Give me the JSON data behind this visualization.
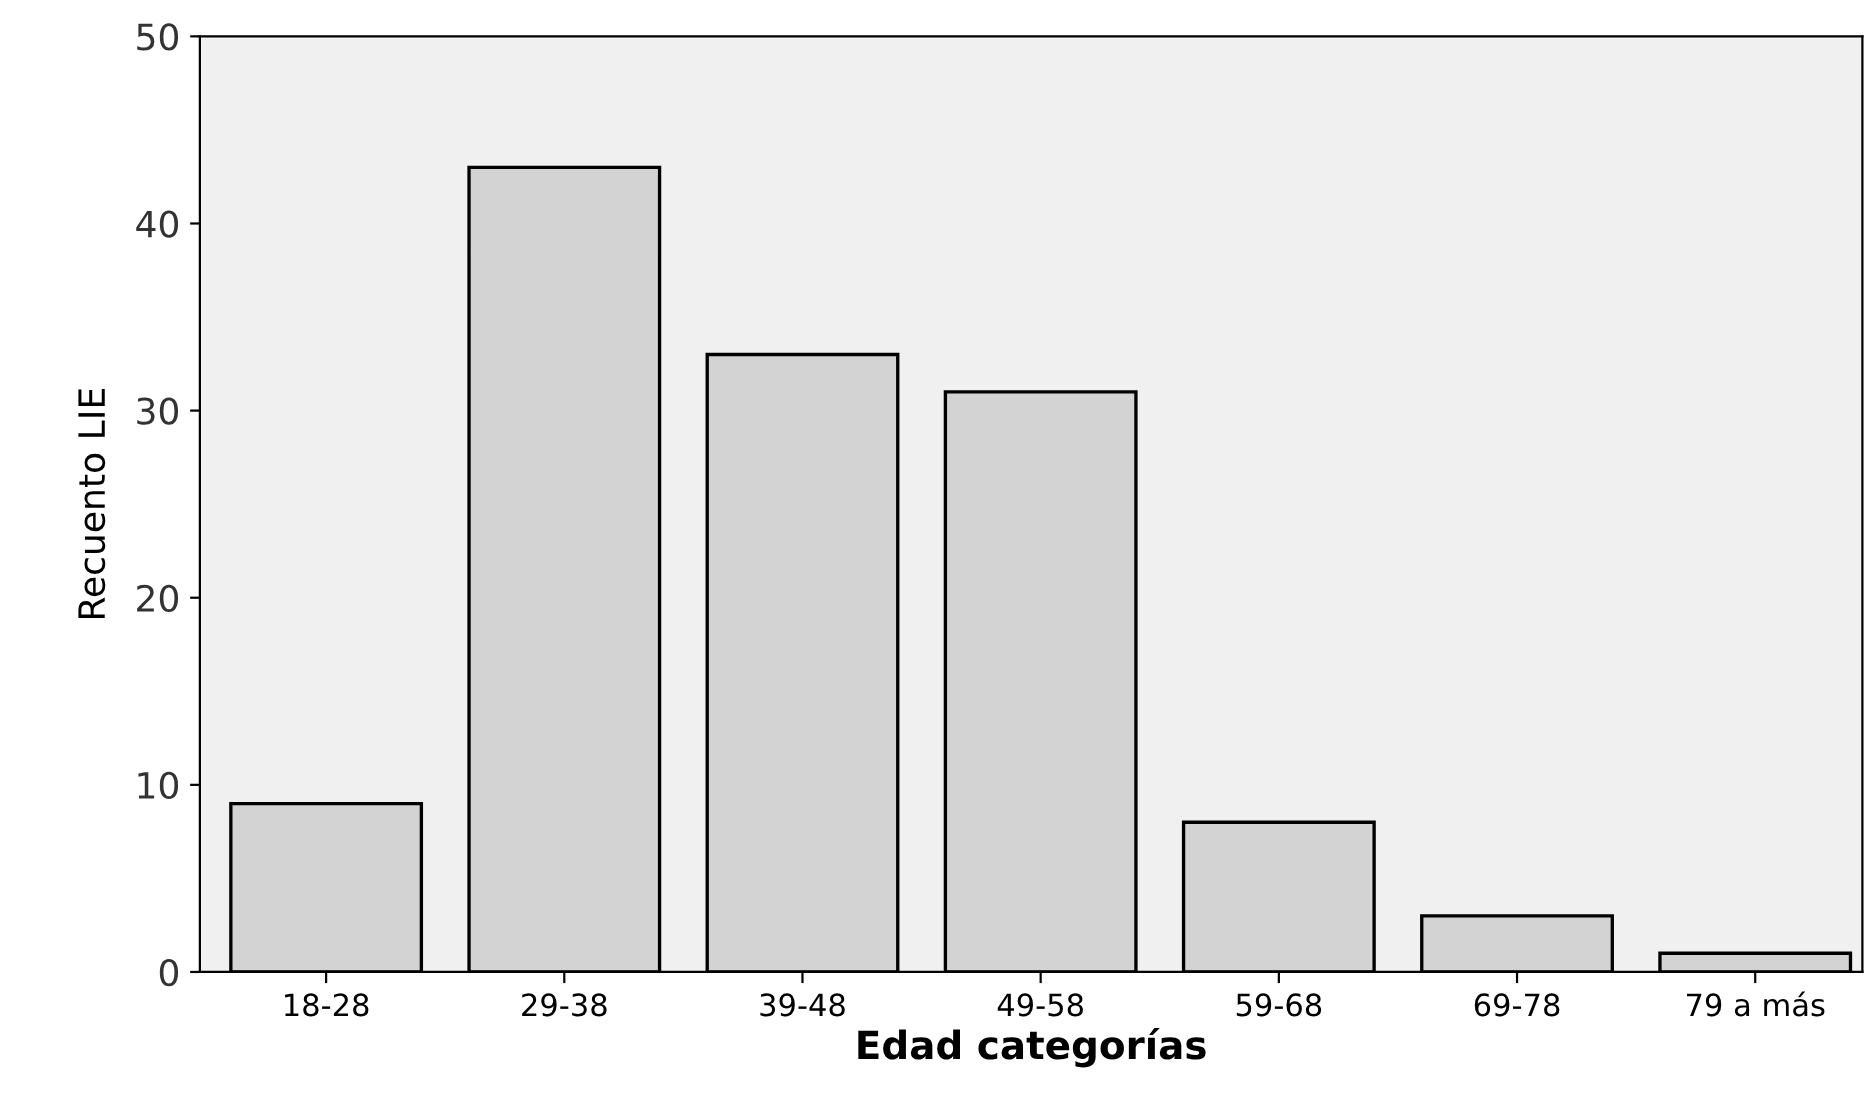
{
  "chart_data": {
    "type": "bar",
    "xlabel": "Edad categorías",
    "ylabel": "Recuento LIE",
    "categories": [
      "18-28",
      "29-38",
      "39-48",
      "49-58",
      "59-68",
      "69-78",
      "79 a más"
    ],
    "values": [
      9,
      43,
      33,
      31,
      8,
      3,
      1
    ],
    "color": "#d3d3d3",
    "ylim": [
      0,
      50
    ],
    "yticks": [
      0,
      10,
      20,
      30,
      40,
      50
    ],
    "grid": false,
    "legend": false
  }
}
